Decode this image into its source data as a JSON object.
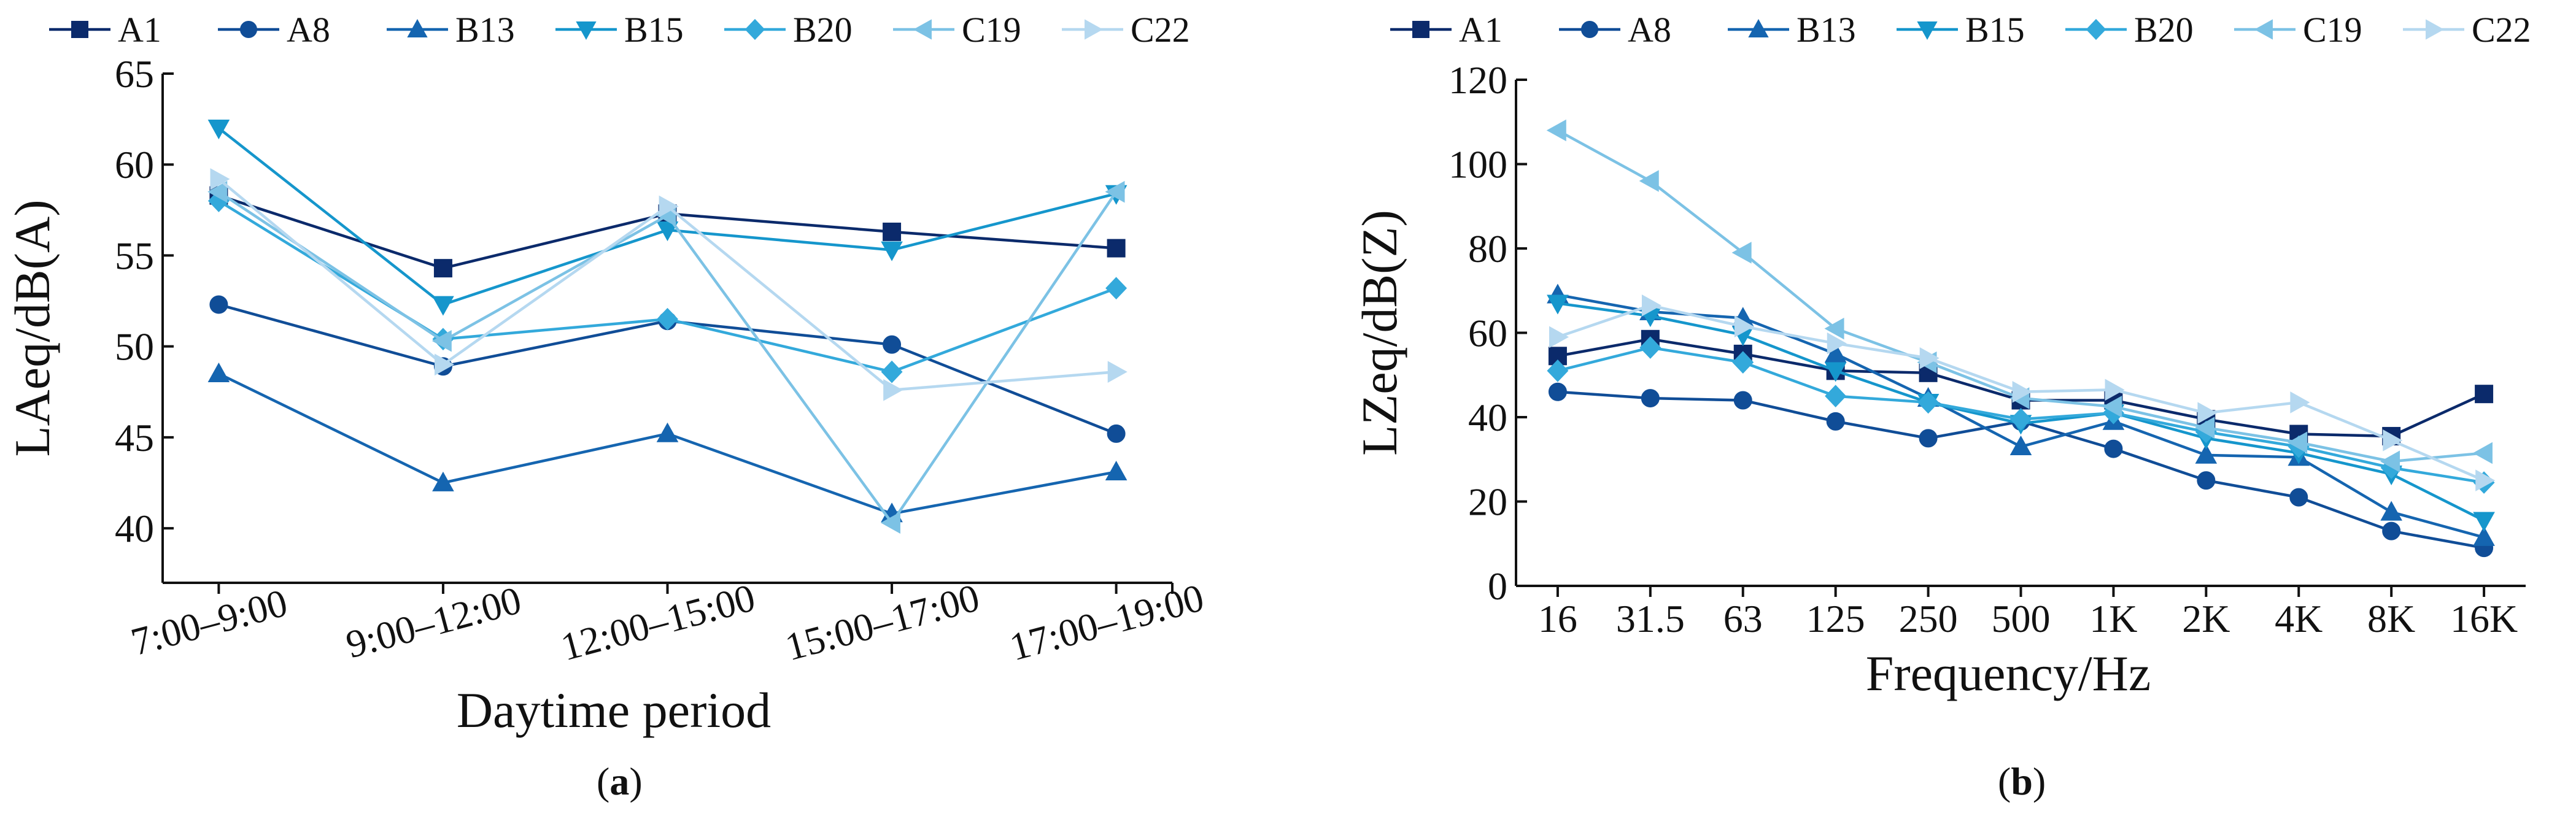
{
  "series_style": [
    {
      "name": "A1",
      "color": "#0b2a6b",
      "marker": "square"
    },
    {
      "name": "A8",
      "color": "#104d97",
      "marker": "circle"
    },
    {
      "name": "B13",
      "color": "#1565b0",
      "marker": "triangle-up"
    },
    {
      "name": "B15",
      "color": "#1596cc",
      "marker": "triangle-down"
    },
    {
      "name": "B20",
      "color": "#33a9db",
      "marker": "diamond"
    },
    {
      "name": "C19",
      "color": "#7cc2e5",
      "marker": "triangle-left"
    },
    {
      "name": "C22",
      "color": "#b5d8f0",
      "marker": "triangle-right"
    }
  ],
  "chart_data": [
    {
      "type": "line",
      "panel_label": "a",
      "title": "",
      "xlabel": "Daytime period",
      "ylabel": "LAeq/dB(A)",
      "ylim": [
        37,
        65
      ],
      "yticks": [
        40,
        45,
        50,
        55,
        60,
        65
      ],
      "grid": false,
      "legend": "top",
      "categories": [
        "7:00–9:00",
        "9:00–12:00",
        "12:00–15:00",
        "15:00–17:00",
        "17:00–19:00"
      ],
      "series": [
        {
          "name": "A1",
          "values": [
            58.3,
            54.3,
            57.3,
            56.3,
            55.4
          ]
        },
        {
          "name": "A8",
          "values": [
            52.3,
            48.9,
            51.4,
            50.1,
            45.2
          ]
        },
        {
          "name": "B13",
          "values": [
            48.5,
            42.5,
            45.2,
            40.8,
            43.1
          ]
        },
        {
          "name": "B15",
          "values": [
            62.0,
            52.3,
            56.4,
            55.3,
            58.4
          ]
        },
        {
          "name": "B20",
          "values": [
            58.0,
            50.4,
            51.5,
            48.6,
            53.2
          ]
        },
        {
          "name": "C19",
          "values": [
            58.5,
            50.3,
            57.2,
            40.3,
            58.5
          ]
        },
        {
          "name": "C22",
          "values": [
            59.2,
            49.0,
            57.7,
            47.6,
            48.6
          ]
        }
      ]
    },
    {
      "type": "line",
      "panel_label": "b",
      "title": "",
      "xlabel": "Frequency/Hz",
      "ylabel": "LZeq/dB(Z)",
      "ylim": [
        0,
        120
      ],
      "yticks": [
        0,
        20,
        40,
        60,
        80,
        100,
        120
      ],
      "grid": false,
      "legend": "top",
      "categories": [
        "16",
        "31.5",
        "63",
        "125",
        "250",
        "500",
        "1K",
        "2K",
        "4K",
        "8K",
        "16K"
      ],
      "series": [
        {
          "name": "A1",
          "values": [
            54.5,
            58.5,
            55.0,
            51.0,
            50.5,
            44.0,
            44.0,
            39.5,
            36.0,
            35.5,
            45.5
          ]
        },
        {
          "name": "A8",
          "values": [
            46.0,
            44.5,
            44.0,
            39.0,
            35.0,
            39.0,
            32.5,
            25.0,
            21.0,
            13.0,
            9.0
          ]
        },
        {
          "name": "B13",
          "values": [
            69.0,
            65.0,
            63.5,
            55.0,
            44.5,
            33.0,
            39.0,
            31.0,
            30.5,
            17.5,
            11.5
          ]
        },
        {
          "name": "B15",
          "values": [
            67.0,
            64.0,
            59.5,
            51.0,
            43.5,
            38.5,
            41.0,
            35.0,
            31.5,
            26.5,
            15.5
          ]
        },
        {
          "name": "B20",
          "values": [
            51.0,
            56.5,
            53.0,
            45.0,
            43.5,
            39.5,
            41.0,
            36.5,
            33.0,
            28.0,
            24.5
          ]
        },
        {
          "name": "C19",
          "values": [
            108.0,
            96.0,
            79.0,
            61.0,
            53.0,
            44.5,
            42.5,
            37.5,
            34.0,
            29.5,
            31.5
          ]
        },
        {
          "name": "C22",
          "values": [
            59.0,
            66.5,
            61.5,
            57.5,
            54.0,
            46.0,
            46.5,
            41.0,
            43.5,
            34.5,
            25.0
          ]
        }
      ]
    }
  ]
}
